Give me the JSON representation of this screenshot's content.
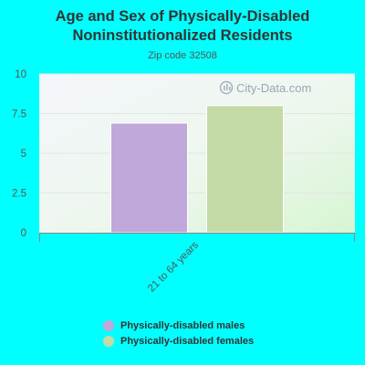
{
  "title_lines": [
    "Age and Sex of Physically-Disabled",
    "Noninstitutionalized Residents"
  ],
  "subtitle": "Zip code 32508",
  "watermark": "City-Data.com",
  "colors": {
    "background": "#00FFFF",
    "males": "#C0A8DA",
    "females": "#C4DAA6"
  },
  "chart_data": {
    "type": "bar",
    "title": "Age and Sex of Physically-Disabled Noninstitutionalized Residents",
    "subtitle": "Zip code 32508",
    "categories": [
      "21 to 64 years"
    ],
    "series": [
      {
        "name": "Physically-disabled males",
        "values": [
          6.9
        ]
      },
      {
        "name": "Physically-disabled females",
        "values": [
          8.0
        ]
      }
    ],
    "ylim": [
      0,
      10
    ],
    "yticks": [
      "0",
      "2.5",
      "5",
      "7.5",
      "10"
    ],
    "grid": true,
    "legend_position": "bottom"
  }
}
